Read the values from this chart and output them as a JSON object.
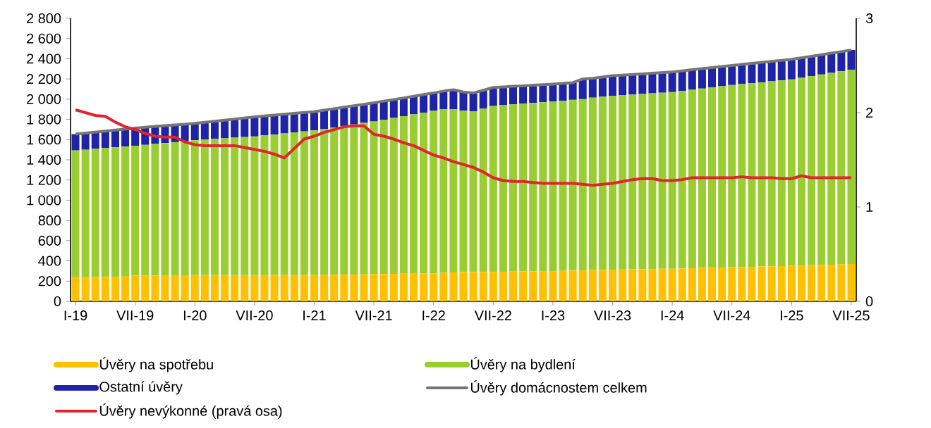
{
  "chart_data": {
    "type": "bar",
    "stacked": true,
    "legend": "bottom",
    "categories": [
      "I-19",
      null,
      null,
      null,
      null,
      null,
      "VII-19",
      null,
      null,
      null,
      null,
      null,
      "I-20",
      null,
      null,
      null,
      null,
      null,
      "VII-20",
      null,
      null,
      null,
      null,
      null,
      "I-21",
      null,
      null,
      null,
      null,
      null,
      "VII-21",
      null,
      null,
      null,
      null,
      null,
      "I-22",
      null,
      null,
      null,
      null,
      null,
      "VII-22",
      null,
      null,
      null,
      null,
      null,
      "I-23",
      null,
      null,
      null,
      null,
      null,
      "VII-23",
      null,
      null,
      null,
      null,
      null,
      "I-24",
      null,
      null,
      null,
      null,
      null,
      "VII-24",
      null,
      null,
      null,
      null,
      null,
      "I-25",
      null,
      null,
      null,
      null,
      null,
      "VII-25"
    ],
    "series": [
      {
        "name": "Úvěry na spotřebu",
        "color": "#ffc000",
        "values": [
          236,
          238,
          240,
          242,
          244,
          246,
          254,
          255,
          256,
          257,
          258,
          258,
          259,
          259,
          259,
          259,
          259,
          259,
          259,
          259,
          260,
          260,
          260,
          260,
          261,
          262,
          263,
          264,
          265,
          266,
          268,
          270,
          271,
          273,
          274,
          276,
          277,
          282,
          286,
          290,
          290,
          291,
          291,
          292,
          294,
          296,
          297,
          299,
          300,
          302,
          304,
          306,
          308,
          311,
          314,
          315,
          317,
          318,
          320,
          322,
          323,
          325,
          327,
          330,
          332,
          335,
          337,
          339,
          342,
          344,
          346,
          349,
          351,
          354,
          357,
          360,
          363,
          366,
          370
        ]
      },
      {
        "name": "Úvěry na bydlení",
        "color": "#9acd32",
        "values": [
          1257,
          1262,
          1268,
          1274,
          1280,
          1285,
          1285,
          1293,
          1301,
          1309,
          1317,
          1327,
          1335,
          1341,
          1347,
          1354,
          1360,
          1366,
          1372,
          1382,
          1391,
          1401,
          1411,
          1421,
          1430,
          1444,
          1457,
          1471,
          1485,
          1499,
          1511,
          1527,
          1543,
          1559,
          1576,
          1591,
          1608,
          1617,
          1613,
          1595,
          1590,
          1614,
          1641,
          1648,
          1654,
          1659,
          1666,
          1671,
          1678,
          1683,
          1689,
          1694,
          1707,
          1713,
          1719,
          1724,
          1728,
          1733,
          1738,
          1742,
          1747,
          1757,
          1766,
          1775,
          1785,
          1793,
          1803,
          1810,
          1816,
          1823,
          1831,
          1837,
          1844,
          1857,
          1870,
          1884,
          1897,
          1910,
          1922
        ]
      },
      {
        "name": "Ostatní úvěry",
        "color": "#1f23a8",
        "values": [
          161,
          164,
          166,
          168,
          170,
          173,
          175,
          174,
          173,
          171,
          170,
          167,
          166,
          171,
          176,
          179,
          184,
          189,
          194,
          193,
          191,
          190,
          188,
          187,
          185,
          185,
          185,
          185,
          185,
          184,
          185,
          183,
          182,
          180,
          179,
          178,
          176,
          181,
          194,
          185,
          181,
          183,
          184,
          181,
          179,
          177,
          175,
          173,
          171,
          171,
          170,
          200,
          191,
          195,
          199,
          199,
          199,
          199,
          199,
          199,
          199,
          198,
          198,
          197,
          195,
          195,
          194,
          195,
          196,
          197,
          197,
          198,
          199,
          198,
          197,
          196,
          195,
          194,
          194
        ]
      },
      {
        "name": "Úvěry domácnostem celkem",
        "type": "line",
        "color": "#767676",
        "values": [
          1654,
          1664,
          1674,
          1684,
          1694,
          1704,
          1714,
          1722,
          1730,
          1737,
          1745,
          1752,
          1760,
          1771,
          1782,
          1792,
          1803,
          1814,
          1825,
          1834,
          1842,
          1851,
          1859,
          1868,
          1876,
          1891,
          1905,
          1920,
          1935,
          1949,
          1964,
          1980,
          1996,
          2012,
          2029,
          2045,
          2061,
          2080,
          2093,
          2070,
          2061,
          2088,
          2116,
          2121,
          2127,
          2132,
          2138,
          2143,
          2149,
          2156,
          2163,
          2200,
          2206,
          2219,
          2232,
          2238,
          2244,
          2250,
          2257,
          2263,
          2269,
          2280,
          2291,
          2302,
          2312,
          2323,
          2334,
          2344,
          2354,
          2364,
          2374,
          2384,
          2394,
          2409,
          2424,
          2440,
          2455,
          2470,
          2486
        ]
      },
      {
        "name": "Úvěry nevýkonné (pravá osa)",
        "type": "line",
        "axis": "y2",
        "color": "#e0262a",
        "values": [
          2.03,
          2.0,
          1.97,
          1.96,
          1.9,
          1.85,
          1.82,
          1.78,
          1.75,
          1.74,
          1.74,
          1.69,
          1.66,
          1.65,
          1.65,
          1.65,
          1.65,
          1.63,
          1.61,
          1.59,
          1.56,
          1.52,
          1.62,
          1.72,
          1.75,
          1.79,
          1.82,
          1.85,
          1.86,
          1.86,
          1.77,
          1.75,
          1.72,
          1.68,
          1.65,
          1.6,
          1.55,
          1.52,
          1.48,
          1.45,
          1.42,
          1.37,
          1.31,
          1.28,
          1.27,
          1.27,
          1.26,
          1.25,
          1.25,
          1.25,
          1.25,
          1.24,
          1.23,
          1.24,
          1.25,
          1.27,
          1.29,
          1.3,
          1.3,
          1.28,
          1.28,
          1.29,
          1.31,
          1.31,
          1.31,
          1.31,
          1.31,
          1.32,
          1.31,
          1.31,
          1.31,
          1.3,
          1.3,
          1.33,
          1.31,
          1.31,
          1.31,
          1.31,
          1.31
        ]
      }
    ],
    "ylim": [
      0,
      2800
    ],
    "yticks": [
      0,
      200,
      400,
      600,
      800,
      {
        "value": 1000,
        "label": "1 000"
      },
      {
        "value": 1200,
        "label": "1 200"
      },
      {
        "value": 1400,
        "label": "1 400"
      },
      {
        "value": 1600,
        "label": "1 600"
      },
      {
        "value": 1800,
        "label": "1 800"
      },
      {
        "value": 2000,
        "label": "2 000"
      },
      {
        "value": 2200,
        "label": "2 200"
      },
      {
        "value": 2400,
        "label": "2 400"
      },
      {
        "value": 2600,
        "label": "2 600"
      },
      {
        "value": 2800,
        "label": "2 800"
      }
    ],
    "y2lim": [
      0,
      3
    ],
    "y2ticks": [
      0,
      1,
      2,
      3
    ]
  }
}
